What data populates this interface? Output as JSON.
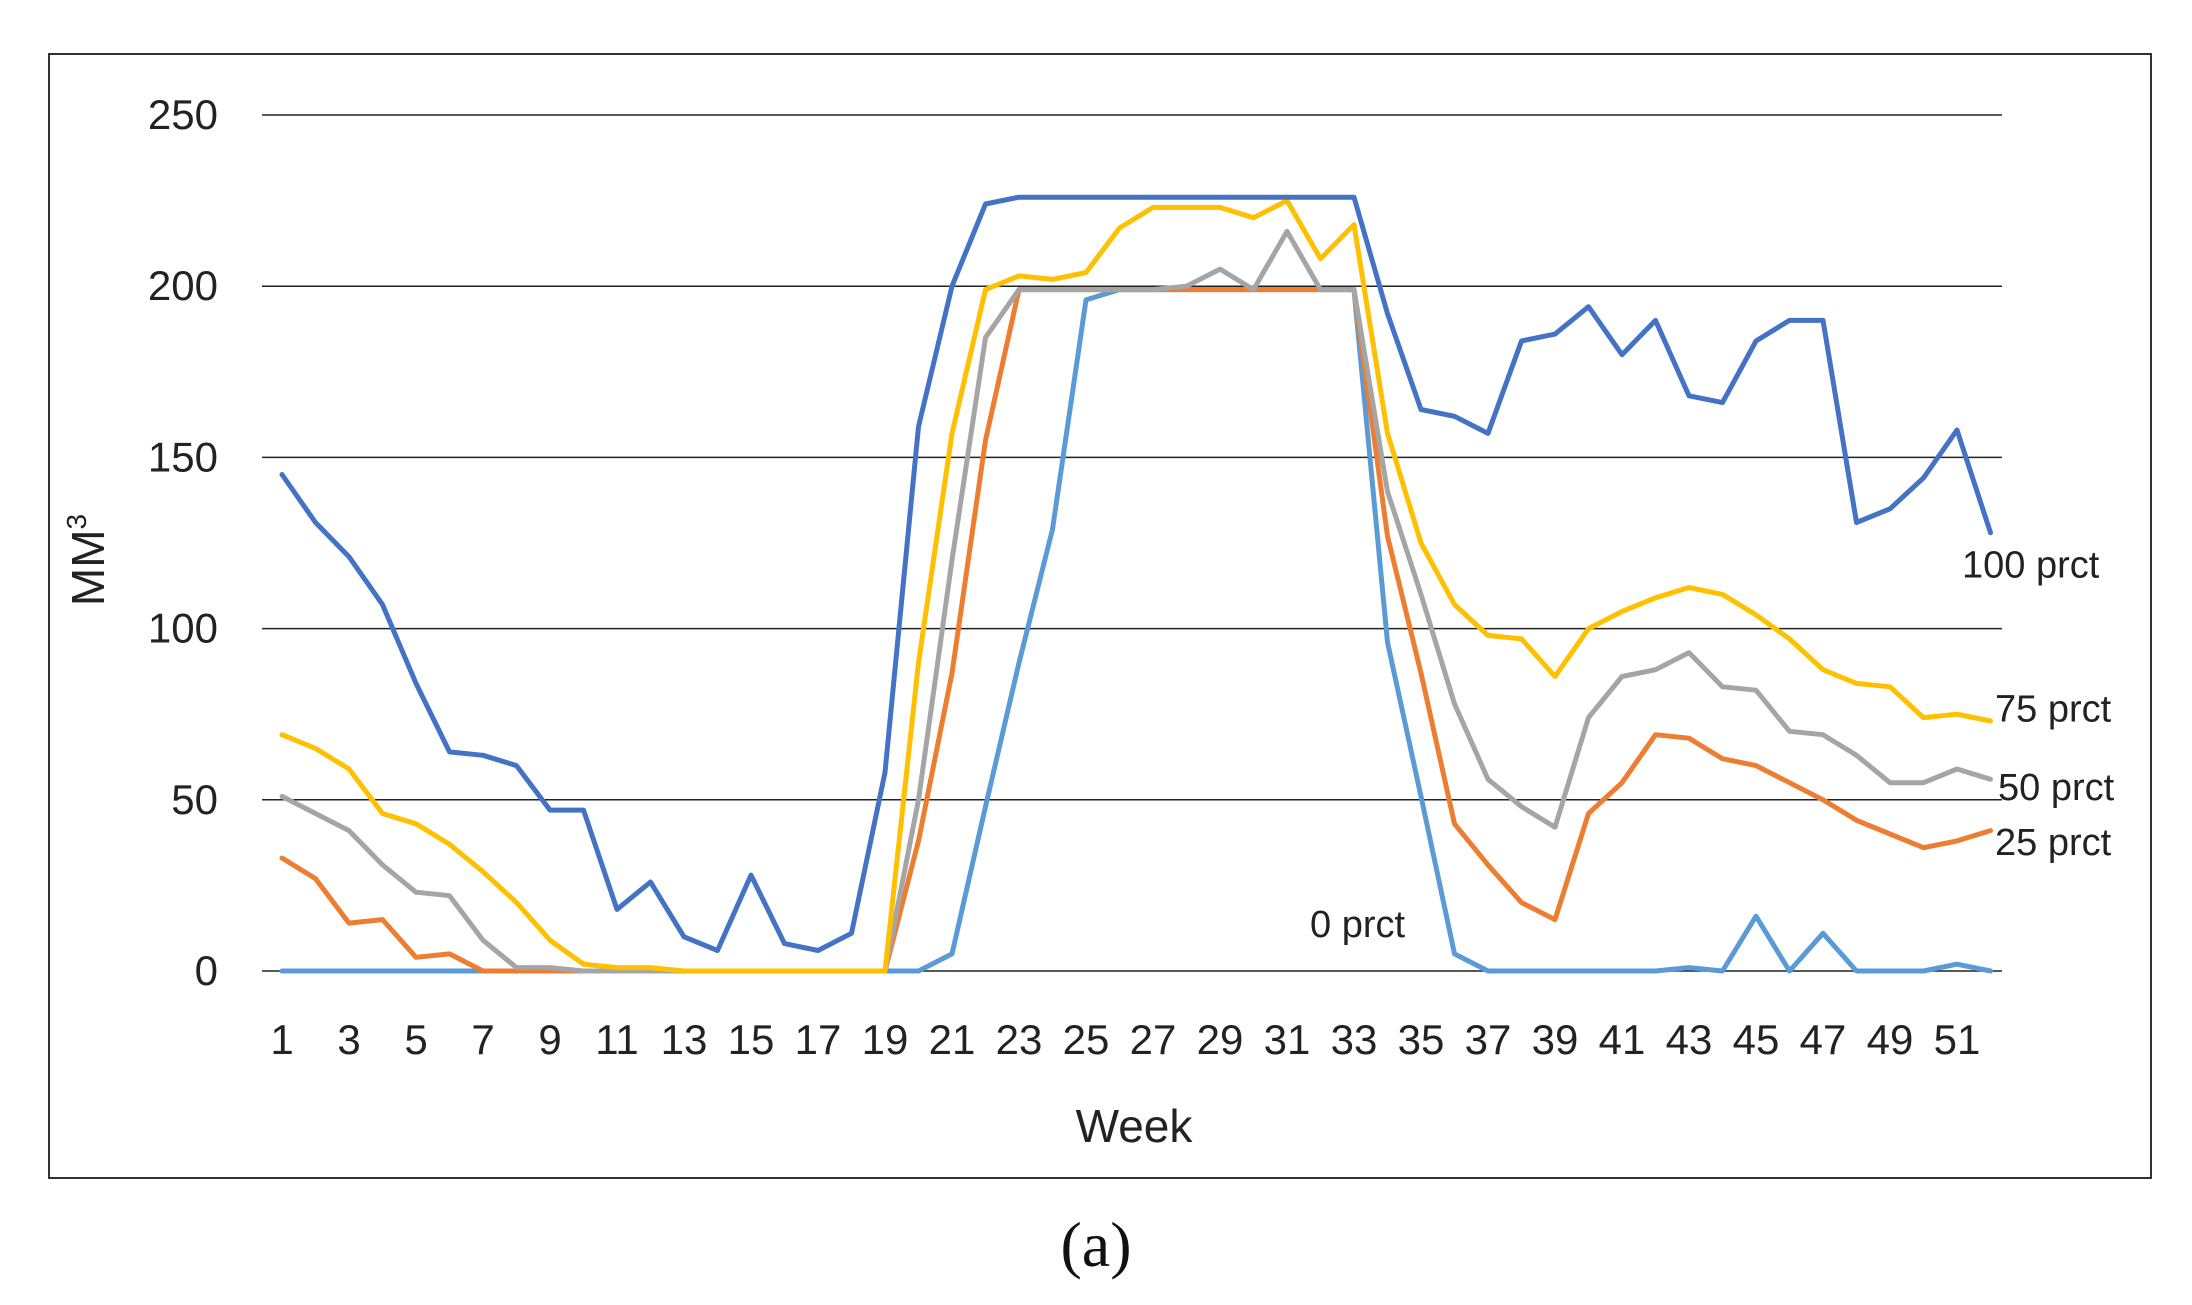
{
  "chart_data": {
    "type": "line",
    "title": "",
    "xlabel": "Week",
    "ylabel": "MM",
    "ylabel_superscript": "3",
    "caption": "(a)",
    "xlim": [
      1,
      52
    ],
    "ylim": [
      0,
      250
    ],
    "y_ticks": [
      0,
      50,
      100,
      150,
      200,
      250
    ],
    "x_ticks": [
      1,
      3,
      5,
      7,
      9,
      11,
      13,
      15,
      17,
      19,
      21,
      23,
      25,
      27,
      29,
      31,
      33,
      35,
      37,
      39,
      41,
      43,
      45,
      47,
      49,
      51
    ],
    "grid": "horizontal",
    "legend": "none",
    "x": [
      1,
      2,
      3,
      4,
      5,
      6,
      7,
      8,
      9,
      10,
      11,
      12,
      13,
      14,
      15,
      16,
      17,
      18,
      19,
      20,
      21,
      22,
      23,
      24,
      25,
      26,
      27,
      28,
      29,
      30,
      31,
      32,
      33,
      34,
      35,
      36,
      37,
      38,
      39,
      40,
      41,
      42,
      43,
      44,
      45,
      46,
      47,
      48,
      49,
      50,
      51,
      52
    ],
    "series": [
      {
        "name": "100 prct",
        "color": "#4472C4",
        "label_week": 52,
        "label_value": 119,
        "values": [
          145,
          131,
          121,
          107,
          84,
          64,
          63,
          60,
          47,
          47,
          18,
          26,
          10,
          6,
          28,
          8,
          6,
          11,
          58,
          159,
          200,
          224,
          226,
          226,
          226,
          226,
          226,
          226,
          226,
          226,
          226,
          226,
          226,
          192,
          164,
          162,
          157,
          184,
          186,
          194,
          180,
          190,
          168,
          166,
          184,
          190,
          190,
          131,
          135,
          144,
          158,
          128
        ]
      },
      {
        "name": "75 prct",
        "color": "#FFC000",
        "label_week": 52,
        "label_value": 77,
        "values": [
          69,
          65,
          59,
          46,
          43,
          37,
          29,
          20,
          9,
          2,
          1,
          1,
          0,
          0,
          0,
          0,
          0,
          0,
          0,
          90,
          157,
          199,
          203,
          202,
          204,
          217,
          223,
          223,
          223,
          220,
          225,
          208,
          218,
          157,
          125,
          107,
          98,
          97,
          86,
          100,
          105,
          109,
          112,
          110,
          104,
          97,
          88,
          84,
          83,
          74,
          75,
          73
        ]
      },
      {
        "name": "50 prct",
        "color": "#A5A5A5",
        "label_week": 52,
        "label_value": 54,
        "values": [
          51,
          46,
          41,
          31,
          23,
          22,
          9,
          1,
          1,
          0,
          0,
          0,
          0,
          0,
          0,
          0,
          0,
          0,
          0,
          50,
          120,
          185,
          199,
          199,
          199,
          199,
          199,
          200,
          205,
          199,
          216,
          199,
          199,
          140,
          110,
          78,
          56,
          48,
          42,
          74,
          86,
          88,
          93,
          83,
          82,
          70,
          69,
          63,
          55,
          55,
          59,
          56
        ]
      },
      {
        "name": "25 prct",
        "color": "#ED7D31",
        "label_week": 52,
        "label_value": 38,
        "values": [
          33,
          27,
          14,
          15,
          4,
          5,
          0,
          0,
          0,
          0,
          0,
          0,
          0,
          0,
          0,
          0,
          0,
          0,
          0,
          38,
          87,
          155,
          199,
          199,
          199,
          199,
          199,
          199,
          199,
          199,
          199,
          199,
          199,
          127,
          87,
          43,
          31,
          20,
          15,
          46,
          55,
          69,
          68,
          62,
          60,
          55,
          50,
          44,
          40,
          36,
          38,
          41
        ]
      },
      {
        "name": "0 prct",
        "color": "#5B9BD5",
        "label_week": 31,
        "label_value": 14,
        "values": [
          0,
          0,
          0,
          0,
          0,
          0,
          0,
          0,
          0,
          0,
          0,
          0,
          0,
          0,
          0,
          0,
          0,
          0,
          0,
          0,
          5,
          48,
          90,
          129,
          196,
          199,
          199,
          199,
          199,
          199,
          199,
          199,
          199,
          96,
          51,
          5,
          0,
          0,
          0,
          0,
          0,
          0,
          1,
          0,
          16,
          0,
          11,
          0,
          0,
          0,
          2,
          0
        ]
      }
    ]
  }
}
